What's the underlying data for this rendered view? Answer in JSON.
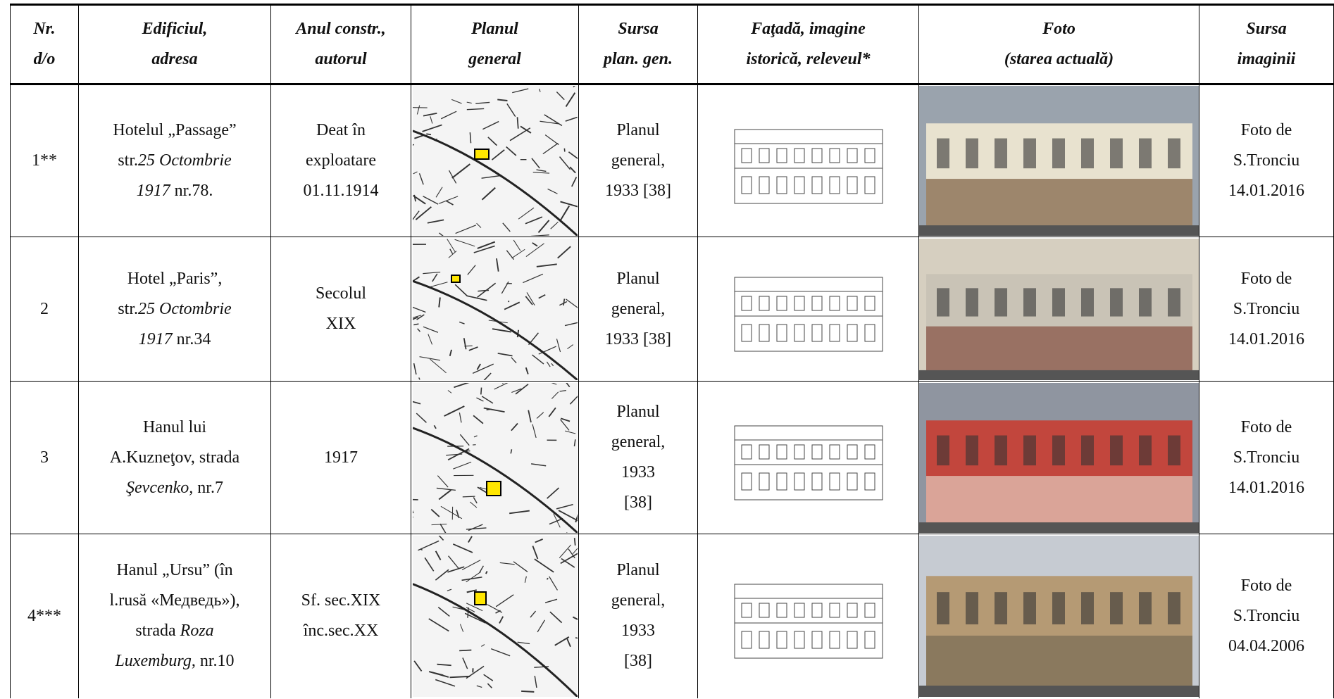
{
  "header": [
    [
      "Nr.",
      "d/o"
    ],
    [
      "Edificiul,",
      "adresa"
    ],
    [
      "Anul constr.,",
      "autorul"
    ],
    [
      "Planul",
      "general"
    ],
    [
      "Sursa",
      "plan. gen."
    ],
    [
      "Faţadă, imagine",
      "istorică, releveul*"
    ],
    [
      "Foto",
      "(starea actuală)"
    ],
    [
      "Sursa",
      "imaginii"
    ]
  ],
  "rows": [
    {
      "nr": "1**",
      "building": [
        [
          {
            "text": "Hotelul „Passage”"
          }
        ],
        [
          {
            "text": "str."
          },
          {
            "text": "25 Octombrie",
            "italic": true
          }
        ],
        [
          {
            "text": "1917",
            "italic": true
          },
          {
            "text": " nr.78."
          }
        ]
      ],
      "year": [
        "Deat în",
        "exploatare",
        "01.11.1914"
      ],
      "plan_source": [
        "Planul",
        "general,",
        "1933 [38]"
      ],
      "photo_source": [
        "Foto de",
        "S.Tronciu",
        "14.01.2016"
      ]
    },
    {
      "nr": "2",
      "building": [
        [
          {
            "text": "Hotel „Paris”,"
          }
        ],
        [
          {
            "text": "str."
          },
          {
            "text": "25 Octombrie",
            "italic": true
          }
        ],
        [
          {
            "text": "1917",
            "italic": true
          },
          {
            "text": " nr.34"
          }
        ]
      ],
      "year": [
        "Secolul",
        "XIX"
      ],
      "plan_source": [
        "Planul",
        "general,",
        "1933 [38]"
      ],
      "photo_source": [
        "Foto de",
        "S.Tronciu",
        "14.01.2016"
      ]
    },
    {
      "nr": "3",
      "building": [
        [
          {
            "text": "Hanul lui"
          }
        ],
        [
          {
            "text": "A.Kuzneţov, strada"
          }
        ],
        [
          {
            "text": "Şevcenko,",
            "italic": true
          },
          {
            "text": " nr.7"
          }
        ]
      ],
      "year": [
        "1917"
      ],
      "plan_source": [
        "Planul",
        "general,",
        "1933",
        "[38]"
      ],
      "photo_source": [
        "Foto de",
        "S.Tronciu",
        "14.01.2016"
      ]
    },
    {
      "nr": "4***",
      "building": [
        [
          {
            "text": "Hanul „Ursu” (în"
          }
        ],
        [
          {
            "text": "l.rusă «Медведь»),"
          }
        ],
        [
          {
            "text": "strada "
          },
          {
            "text": "Roza",
            "italic": true
          }
        ],
        [
          {
            "text": "Luxemburg",
            "italic": true
          },
          {
            "text": ", nr.10"
          }
        ]
      ],
      "year": [
        "Sf. sec.XIX",
        "înc.sec.XX"
      ],
      "plan_source": [
        "Planul",
        "general,",
        "1933",
        "[38]"
      ],
      "photo_source": [
        "Foto de",
        "S.Tronciu",
        "04.04.2006"
      ]
    }
  ]
}
